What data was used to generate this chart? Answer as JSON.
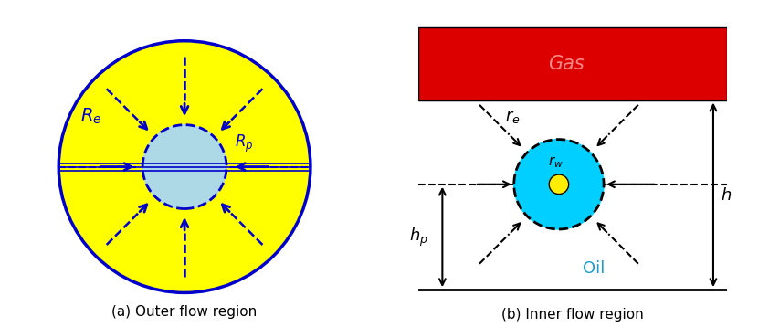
{
  "fig_width": 8.42,
  "fig_height": 3.58,
  "bg_color": "#ffffff",
  "yellow_color": "#ffff00",
  "blue_outline_color": "#0000cc",
  "light_blue_color": "#add8e6",
  "red_color": "#dd0000",
  "cyan_color": "#00cfff",
  "label_a": "(a) Outer flow region",
  "label_b": "(b) Inner flow region",
  "gas_label": "Gas",
  "oil_label": "Oil",
  "Re_label": "$R_e$",
  "Rp_label": "$R_p$",
  "re_label": "$r_e$",
  "rw_label": "$r_w$",
  "h_label": "$h$",
  "hp_label": "$h_p$"
}
